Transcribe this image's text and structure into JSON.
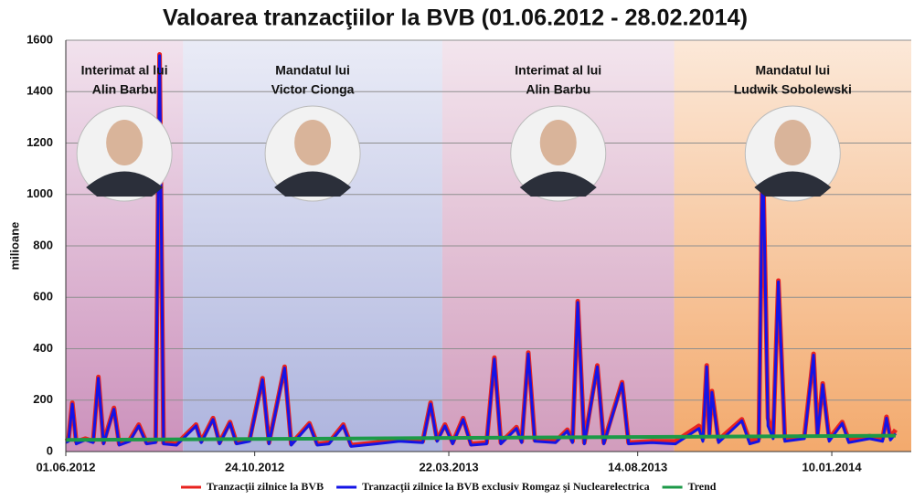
{
  "chart_data": {
    "type": "line",
    "title": "Valoarea tranzacţiilor la BVB (01.06.2012 - 28.02.2014)",
    "y_label": "milioane",
    "x": [
      "2012-06-01",
      "2012-06-03",
      "2012-06-06",
      "2012-06-09",
      "2012-06-16",
      "2012-06-22",
      "2012-06-26",
      "2012-06-30",
      "2012-07-08",
      "2012-07-12",
      "2012-07-20",
      "2012-07-27",
      "2012-08-02",
      "2012-08-09",
      "2012-08-12",
      "2012-08-15",
      "2012-08-25",
      "2012-09-09",
      "2012-09-13",
      "2012-09-22",
      "2012-09-27",
      "2012-10-05",
      "2012-10-10",
      "2012-10-20",
      "2012-10-30",
      "2012-11-04",
      "2012-11-16",
      "2012-11-21",
      "2012-12-05",
      "2012-12-11",
      "2012-12-20",
      "2012-12-31",
      "2013-01-06",
      "2013-01-25",
      "2013-02-12",
      "2013-03-02",
      "2013-03-08",
      "2013-03-13",
      "2013-03-19",
      "2013-03-25",
      "2013-04-02",
      "2013-04-08",
      "2013-04-20",
      "2013-04-26",
      "2013-05-01",
      "2013-05-13",
      "2013-05-17",
      "2013-05-22",
      "2013-05-27",
      "2013-06-12",
      "2013-06-21",
      "2013-06-25",
      "2013-06-29",
      "2013-07-04",
      "2013-07-14",
      "2013-07-19",
      "2013-08-02",
      "2013-08-07",
      "2013-08-25",
      "2013-09-12",
      "2013-09-30",
      "2013-10-03",
      "2013-10-06",
      "2013-10-08",
      "2013-10-10",
      "2013-10-15",
      "2013-11-02",
      "2013-11-08",
      "2013-11-15",
      "2013-11-18",
      "2013-11-22",
      "2013-11-26",
      "2013-11-30",
      "2013-12-05",
      "2013-12-20",
      "2013-12-27",
      "2013-12-30",
      "2014-01-03",
      "2014-01-08",
      "2014-01-18",
      "2014-01-23",
      "2014-02-08",
      "2014-02-18",
      "2014-02-21",
      "2014-02-24",
      "2014-02-28"
    ],
    "series": [
      {
        "name": "Tranzacţii zilnice la BVB",
        "color": "#e8231f",
        "width": 5,
        "values": [
          40,
          45,
          190,
          38,
          50,
          40,
          290,
          35,
          170,
          30,
          45,
          105,
          35,
          40,
          1545,
          35,
          30,
          105,
          40,
          130,
          35,
          115,
          35,
          45,
          285,
          35,
          330,
          30,
          110,
          30,
          35,
          105,
          25,
          35,
          45,
          40,
          190,
          45,
          105,
          35,
          130,
          30,
          35,
          365,
          35,
          95,
          40,
          385,
          45,
          40,
          85,
          40,
          585,
          35,
          335,
          35,
          270,
          35,
          40,
          40,
          100,
          50,
          335,
          70,
          235,
          45,
          125,
          40,
          50,
          1185,
          130,
          60,
          665,
          50,
          60,
          380,
          70,
          265,
          50,
          115,
          45,
          60,
          50,
          135,
          55,
          85
        ]
      },
      {
        "name": "Tranzacţii zilnice la BVB exclusiv Romgaz şi Nuclearelectrica",
        "color": "#1414e6",
        "width": 3,
        "values": [
          35,
          40,
          185,
          30,
          45,
          35,
          285,
          30,
          165,
          25,
          40,
          100,
          30,
          35,
          1540,
          30,
          25,
          100,
          35,
          125,
          30,
          110,
          30,
          40,
          280,
          30,
          325,
          25,
          105,
          25,
          30,
          100,
          20,
          30,
          40,
          35,
          185,
          40,
          100,
          30,
          125,
          25,
          30,
          360,
          30,
          90,
          35,
          380,
          40,
          35,
          80,
          35,
          580,
          30,
          330,
          30,
          265,
          30,
          35,
          30,
          90,
          40,
          330,
          60,
          230,
          35,
          120,
          30,
          40,
          1180,
          100,
          50,
          660,
          40,
          50,
          375,
          60,
          260,
          40,
          110,
          35,
          50,
          40,
          130,
          45,
          70
        ]
      },
      {
        "name": "Trend",
        "color": "#1c9a48",
        "width": 4,
        "x": [
          "2012-06-01",
          "2014-02-28"
        ],
        "values": [
          45,
          62
        ]
      }
    ],
    "xlim": [
      "2012-06-01",
      "2014-03-12"
    ],
    "xticks": [
      {
        "value": "2012-06-01",
        "label": "01.06.2012"
      },
      {
        "value": "2012-10-24",
        "label": "24.10.2012"
      },
      {
        "value": "2013-03-22",
        "label": "22.03.2013"
      },
      {
        "value": "2013-08-14",
        "label": "14.08.2013"
      },
      {
        "value": "2014-01-10",
        "label": "10.01.2014"
      }
    ],
    "ylim": [
      0,
      1600
    ],
    "yticks": [
      0,
      200,
      400,
      600,
      800,
      1000,
      1200,
      1400,
      1600
    ],
    "grid": true,
    "legend": "bottom",
    "periods": [
      {
        "start": "2012-06-01",
        "end": "2012-08-30",
        "color": "#c98bb8",
        "label": [
          "Interimat al lui",
          "Alin Barbu"
        ]
      },
      {
        "start": "2012-08-30",
        "end": "2013-03-17",
        "color": "#a9b0dc",
        "label": [
          "Mandatul lui",
          "Victor Cionga"
        ]
      },
      {
        "start": "2013-03-17",
        "end": "2013-09-11",
        "color": "#cf97b9",
        "label": [
          "Interimat al lui",
          "Alin Barbu"
        ]
      },
      {
        "start": "2013-09-11",
        "end": "2014-03-12",
        "color": "#f2a565",
        "label": [
          "Mandatul lui",
          "Ludwik Sobolewski"
        ]
      }
    ]
  }
}
